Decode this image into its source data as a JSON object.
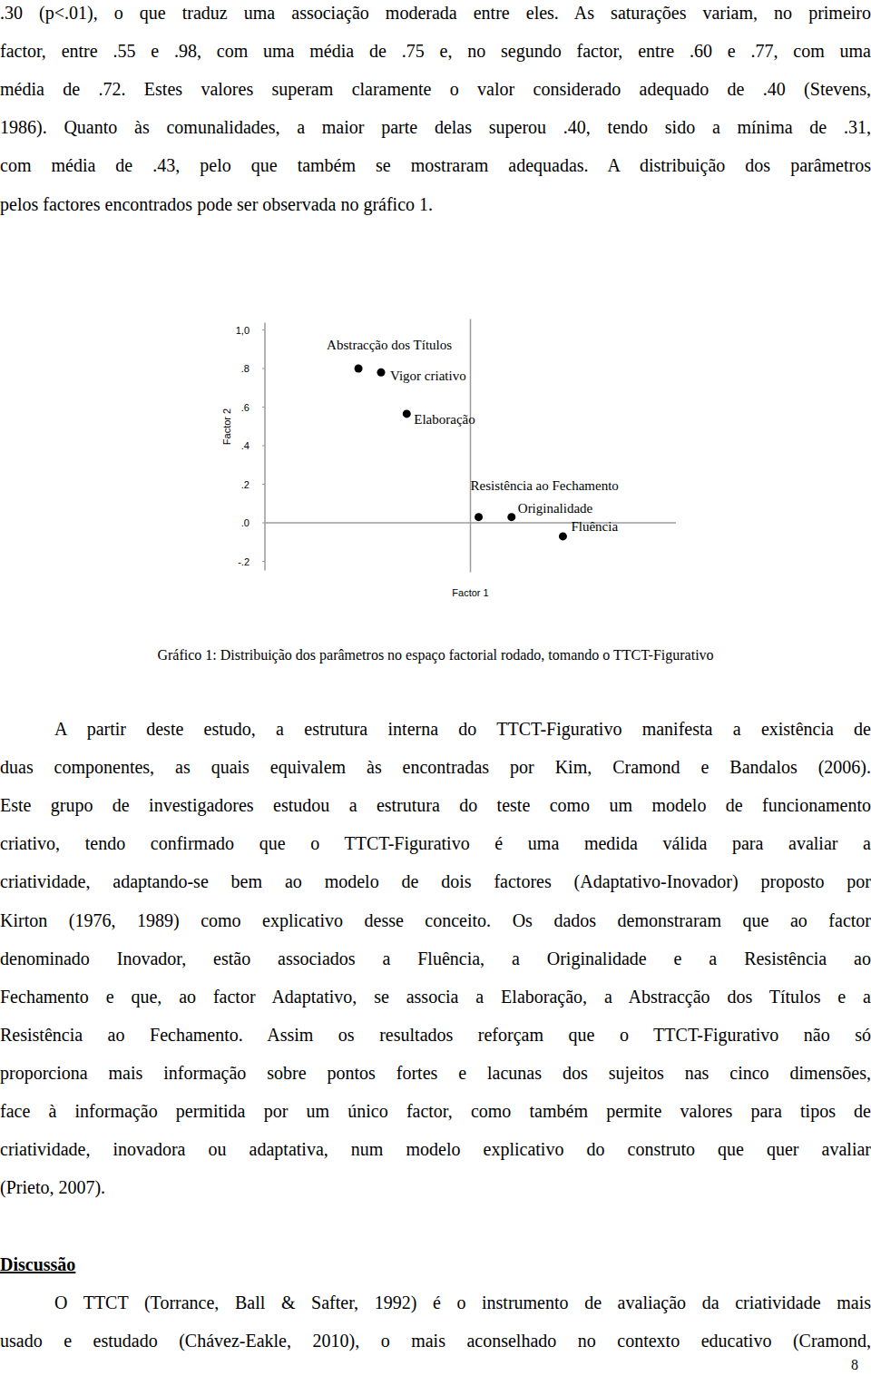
{
  "body_before": {
    "lines": [
      ".30 (p<.01), o que traduz uma associação moderada entre eles. As saturações variam, no primeiro",
      "factor, entre .55 e .98, com uma média de .75 e, no segundo factor, entre .60 e .77, com uma",
      "média de .72. Estes valores superam claramente o valor considerado adequado de .40 (Stevens,",
      "1986). Quanto às comunalidades, a maior parte delas superou .40, tendo sido a mínima de .31,",
      "com média de .43, pelo que também se mostraram adequadas. A distribuição dos parâmetros",
      "pelos factores encontrados pode ser observada no gráfico 1."
    ]
  },
  "chart_data": {
    "type": "scatter",
    "xlabel": "Factor 1",
    "ylabel": "Factor 2",
    "point_labels": [
      "Abstracção dos Títulos",
      "Vigor criativo",
      "Elaboração",
      "Resistência ao Fechamento",
      "Originalidade",
      "Fluência"
    ],
    "x": [
      -0.545,
      -0.435,
      -0.31,
      0.04,
      0.2,
      0.45
    ],
    "values": [
      0.8,
      0.78,
      0.565,
      0.03,
      0.03,
      -0.07
    ],
    "color": "#000000",
    "marker": "circle",
    "xlim": [
      -1,
      1
    ],
    "ylim": [
      -0.2,
      1.0
    ],
    "xticks": [
      0
    ],
    "yticks": [
      {
        "value": 1.0,
        "label": "1,0"
      },
      {
        "value": 0.8,
        "label": ".8"
      },
      {
        "value": 0.6,
        "label": ".6"
      },
      {
        "value": 0.4,
        "label": ".4"
      },
      {
        "value": 0.2,
        "label": ".2"
      },
      {
        "value": 0,
        "label": ".0"
      },
      {
        "value": -0.2,
        "label": "-.2"
      }
    ],
    "grid": false,
    "tick_labels": "y"
  },
  "caption": "Gráfico 1: Distribuição dos parâmetros no espaço factorial rodado, tomando o TTCT-Figurativo",
  "body_after": {
    "lines": [
      "A partir deste estudo, a estrutura interna do TTCT-Figurativo manifesta a existência de",
      "duas componentes, as quais equivalem às encontradas por Kim, Cramond e Bandalos (2006).",
      "Este grupo de investigadores estudou a estrutura do teste como um modelo de funcionamento",
      "criativo, tendo confirmado que o TTCT-Figurativo é uma medida válida para avaliar a",
      "criatividade, adaptando-se bem ao modelo de dois factores (Adaptativo-Inovador) proposto por",
      "Kirton (1976, 1989) como explicativo desse conceito. Os dados demonstraram que ao factor",
      "denominado Inovador, estão associados a Fluência, a Originalidade e a Resistência ao",
      "Fechamento e que, ao factor Adaptativo, se associa a Elaboração, a Abstracção dos Títulos e a",
      "Resistência ao Fechamento. Assim os resultados reforçam que o TTCT-Figurativo não só",
      "proporciona mais informação sobre pontos fortes e lacunas dos sujeitos nas cinco dimensões,",
      "face à informação permitida por um único factor, como também permite valores para tipos de",
      "criatividade, inovadora ou adaptativa, num modelo explicativo do construto que quer avaliar",
      "(Prieto, 2007)."
    ]
  },
  "section": {
    "heading": "Discussão",
    "lines": [
      "O TTCT (Torrance, Ball & Safter, 1992) é o instrumento de avaliação da criatividade mais",
      "usado e estudado (Chávez-Eakle, 2010), o mais aconselhado no contexto educativo (Cramond,"
    ]
  },
  "page_number": "8"
}
